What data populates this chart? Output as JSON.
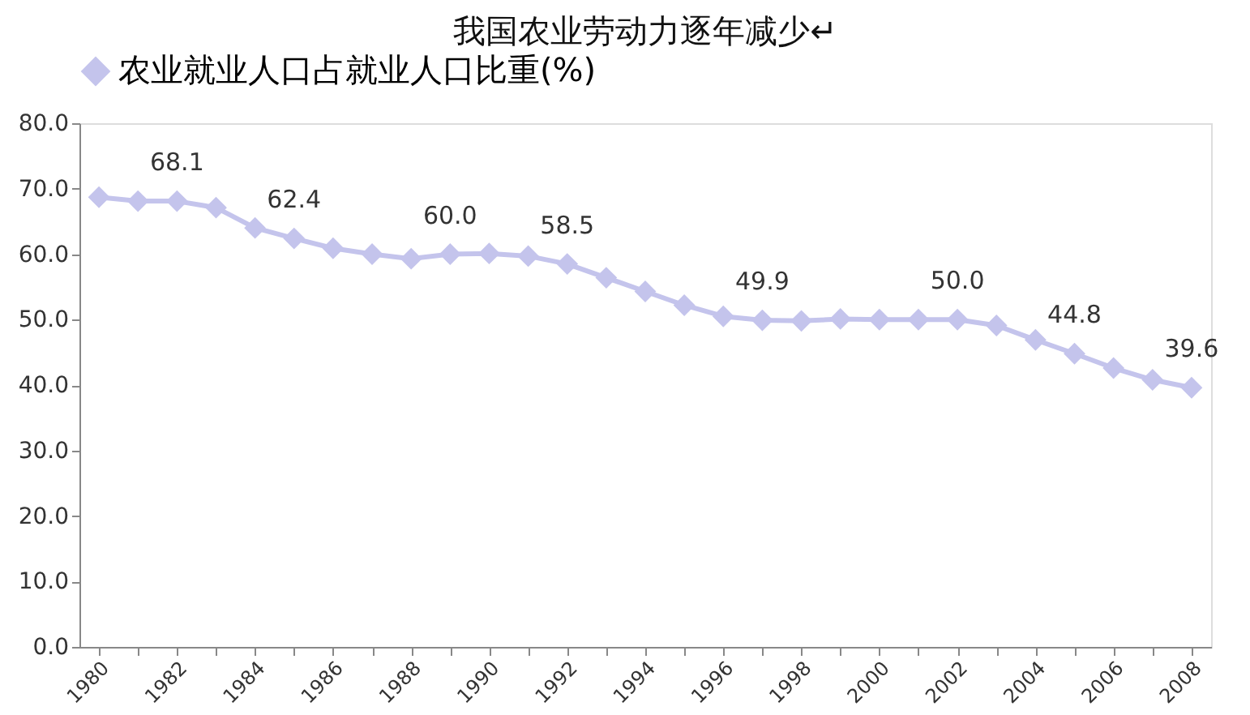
{
  "chart_data": {
    "type": "line",
    "title": "我国农业劳动力逐年减少↵",
    "categories": [
      "1980",
      null,
      "1982",
      null,
      "1984",
      null,
      "1986",
      null,
      "1988",
      null,
      "1990",
      null,
      "1992",
      null,
      "1994",
      null,
      "1996",
      null,
      "1998",
      null,
      "2000",
      null,
      "2002",
      null,
      "2004",
      null,
      "2006",
      null,
      "2008"
    ],
    "series": [
      {
        "name": "农业就业人口占就业人口比重(%)",
        "color": "#c4c4ec",
        "values": [
          68.7,
          68.1,
          68.1,
          67.1,
          64.0,
          62.4,
          60.9,
          60.0,
          59.3,
          60.0,
          60.1,
          59.7,
          58.5,
          56.4,
          54.3,
          52.2,
          50.5,
          49.9,
          49.8,
          50.1,
          50.0,
          50.0,
          50.0,
          49.1,
          46.9,
          44.8,
          42.6,
          40.8,
          39.6
        ],
        "value_labels": [
          null,
          null,
          "68.1",
          null,
          null,
          "62.4",
          null,
          null,
          null,
          "60.0",
          null,
          null,
          "58.5",
          null,
          null,
          null,
          null,
          "49.9",
          null,
          null,
          null,
          null,
          "50.0",
          null,
          null,
          "44.8",
          null,
          null,
          "39.6"
        ]
      }
    ],
    "ylim": [
      0,
      80
    ],
    "yticks": [
      {
        "value": 0,
        "label": "0.0"
      },
      {
        "value": 10,
        "label": "10.0"
      },
      {
        "value": 20,
        "label": "20.0"
      },
      {
        "value": 30,
        "label": "30.0"
      },
      {
        "value": 40,
        "label": "40.0"
      },
      {
        "value": 50,
        "label": "50.0"
      },
      {
        "value": 60,
        "label": "60.0"
      },
      {
        "value": 70,
        "label": "70.0"
      },
      {
        "value": 80,
        "label": "80.0"
      }
    ],
    "marker": "diamond",
    "line_style": "solid",
    "legend": "top",
    "grid": false
  }
}
